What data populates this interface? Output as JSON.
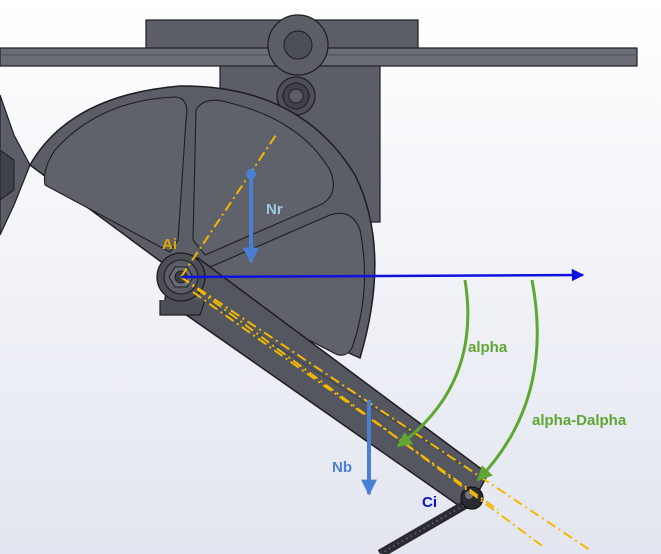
{
  "labels": {
    "ai": "Ai",
    "nr": "Nr",
    "alpha": "alpha",
    "alpha_dalpha": "alpha-Dalpha",
    "nb": "Nb",
    "ci": "Ci"
  },
  "colors": {
    "background": "#f2f3f8",
    "part_fill": "#5b5e66",
    "part_dark": "#3f4249",
    "part_edge": "#1d1e22",
    "axis_blue": "#1010e0",
    "force_blue": "#4a7fd4",
    "angle_green": "#5fa632",
    "construction_yellow": "#f5b800",
    "label_ai": "#e3a600",
    "label_nr": "#9fc9de",
    "label_alpha": "#5fa632",
    "label_nb": "#4a7fd4",
    "label_ci": "#1010c0"
  },
  "icons": {
    "pivot": "hex-nut-icon",
    "ball_joint": "ball-joint-icon"
  }
}
